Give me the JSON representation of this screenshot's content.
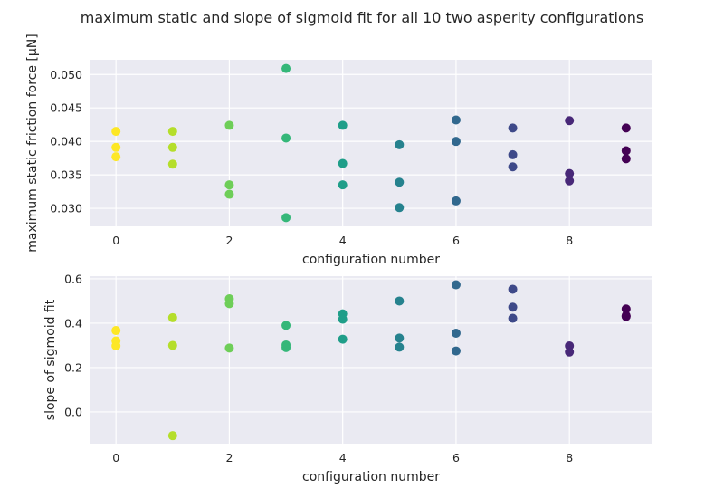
{
  "title": "maximum static and slope of sigmoid fit for all 10 two asperity configurations",
  "style": {
    "facecolor": "#eaeaf2",
    "gridcolor": "#ffffff",
    "config_colors": [
      "#fde725",
      "#b5de2b",
      "#6ece58",
      "#35b779",
      "#1f9e89",
      "#26828e",
      "#31688e",
      "#3e4989",
      "#482878",
      "#440154"
    ]
  },
  "chart_data": [
    {
      "type": "scatter",
      "xlabel": "configuration number",
      "ylabel": "maximum static friction force [μN]",
      "xlim": [
        -0.45,
        9.45
      ],
      "ylim": [
        0.0273,
        0.0522
      ],
      "xticks": [
        0,
        2,
        4,
        6,
        8
      ],
      "xtick_labels": [
        "0",
        "2",
        "4",
        "6",
        "8"
      ],
      "yticks": [
        0.03,
        0.035,
        0.04,
        0.045,
        0.05
      ],
      "ytick_labels": [
        "0.030",
        "0.035",
        "0.040",
        "0.045",
        "0.050"
      ],
      "grid": true,
      "points": [
        {
          "x": 0,
          "y": 0.0415
        },
        {
          "x": 0,
          "y": 0.0391
        },
        {
          "x": 0,
          "y": 0.0377
        },
        {
          "x": 1,
          "y": 0.0415
        },
        {
          "x": 1,
          "y": 0.0391
        },
        {
          "x": 1,
          "y": 0.0366
        },
        {
          "x": 2,
          "y": 0.0424
        },
        {
          "x": 2,
          "y": 0.0335
        },
        {
          "x": 2,
          "y": 0.0321
        },
        {
          "x": 3,
          "y": 0.0509
        },
        {
          "x": 3,
          "y": 0.0405
        },
        {
          "x": 3,
          "y": 0.0286
        },
        {
          "x": 4,
          "y": 0.0424
        },
        {
          "x": 4,
          "y": 0.0367
        },
        {
          "x": 4,
          "y": 0.0335
        },
        {
          "x": 5,
          "y": 0.0395
        },
        {
          "x": 5,
          "y": 0.0339
        },
        {
          "x": 5,
          "y": 0.0301
        },
        {
          "x": 6,
          "y": 0.0432
        },
        {
          "x": 6,
          "y": 0.04
        },
        {
          "x": 6,
          "y": 0.0311
        },
        {
          "x": 7,
          "y": 0.042
        },
        {
          "x": 7,
          "y": 0.038
        },
        {
          "x": 7,
          "y": 0.0362
        },
        {
          "x": 8,
          "y": 0.0431
        },
        {
          "x": 8,
          "y": 0.0352
        },
        {
          "x": 8,
          "y": 0.0341
        },
        {
          "x": 9,
          "y": 0.042
        },
        {
          "x": 9,
          "y": 0.0386
        },
        {
          "x": 9,
          "y": 0.0374
        }
      ]
    },
    {
      "type": "scatter",
      "xlabel": "configuration number",
      "ylabel": "slope of sigmoid fit",
      "xlim": [
        -0.45,
        9.45
      ],
      "ylim": [
        -0.143,
        0.612
      ],
      "xticks": [
        0,
        2,
        4,
        6,
        8
      ],
      "xtick_labels": [
        "0",
        "2",
        "4",
        "6",
        "8"
      ],
      "yticks": [
        0.0,
        0.2,
        0.4,
        0.6
      ],
      "ytick_labels": [
        "0.0",
        "0.2",
        "0.4",
        "0.6"
      ],
      "grid": true,
      "points": [
        {
          "x": 0,
          "y": 0.367
        },
        {
          "x": 0,
          "y": 0.32
        },
        {
          "x": 0,
          "y": 0.298
        },
        {
          "x": 1,
          "y": 0.425
        },
        {
          "x": 1,
          "y": 0.3
        },
        {
          "x": 1,
          "y": -0.107
        },
        {
          "x": 2,
          "y": 0.51
        },
        {
          "x": 2,
          "y": 0.488
        },
        {
          "x": 2,
          "y": 0.288
        },
        {
          "x": 3,
          "y": 0.39
        },
        {
          "x": 3,
          "y": 0.302
        },
        {
          "x": 3,
          "y": 0.29
        },
        {
          "x": 4,
          "y": 0.442
        },
        {
          "x": 4,
          "y": 0.418
        },
        {
          "x": 4,
          "y": 0.328
        },
        {
          "x": 5,
          "y": 0.5
        },
        {
          "x": 5,
          "y": 0.333
        },
        {
          "x": 5,
          "y": 0.292
        },
        {
          "x": 6,
          "y": 0.573
        },
        {
          "x": 6,
          "y": 0.355
        },
        {
          "x": 6,
          "y": 0.275
        },
        {
          "x": 7,
          "y": 0.553
        },
        {
          "x": 7,
          "y": 0.472
        },
        {
          "x": 7,
          "y": 0.422
        },
        {
          "x": 8,
          "y": 0.298
        },
        {
          "x": 8,
          "y": 0.27
        },
        {
          "x": 9,
          "y": 0.464
        },
        {
          "x": 9,
          "y": 0.434
        },
        {
          "x": 9,
          "y": 0.43
        }
      ]
    }
  ]
}
